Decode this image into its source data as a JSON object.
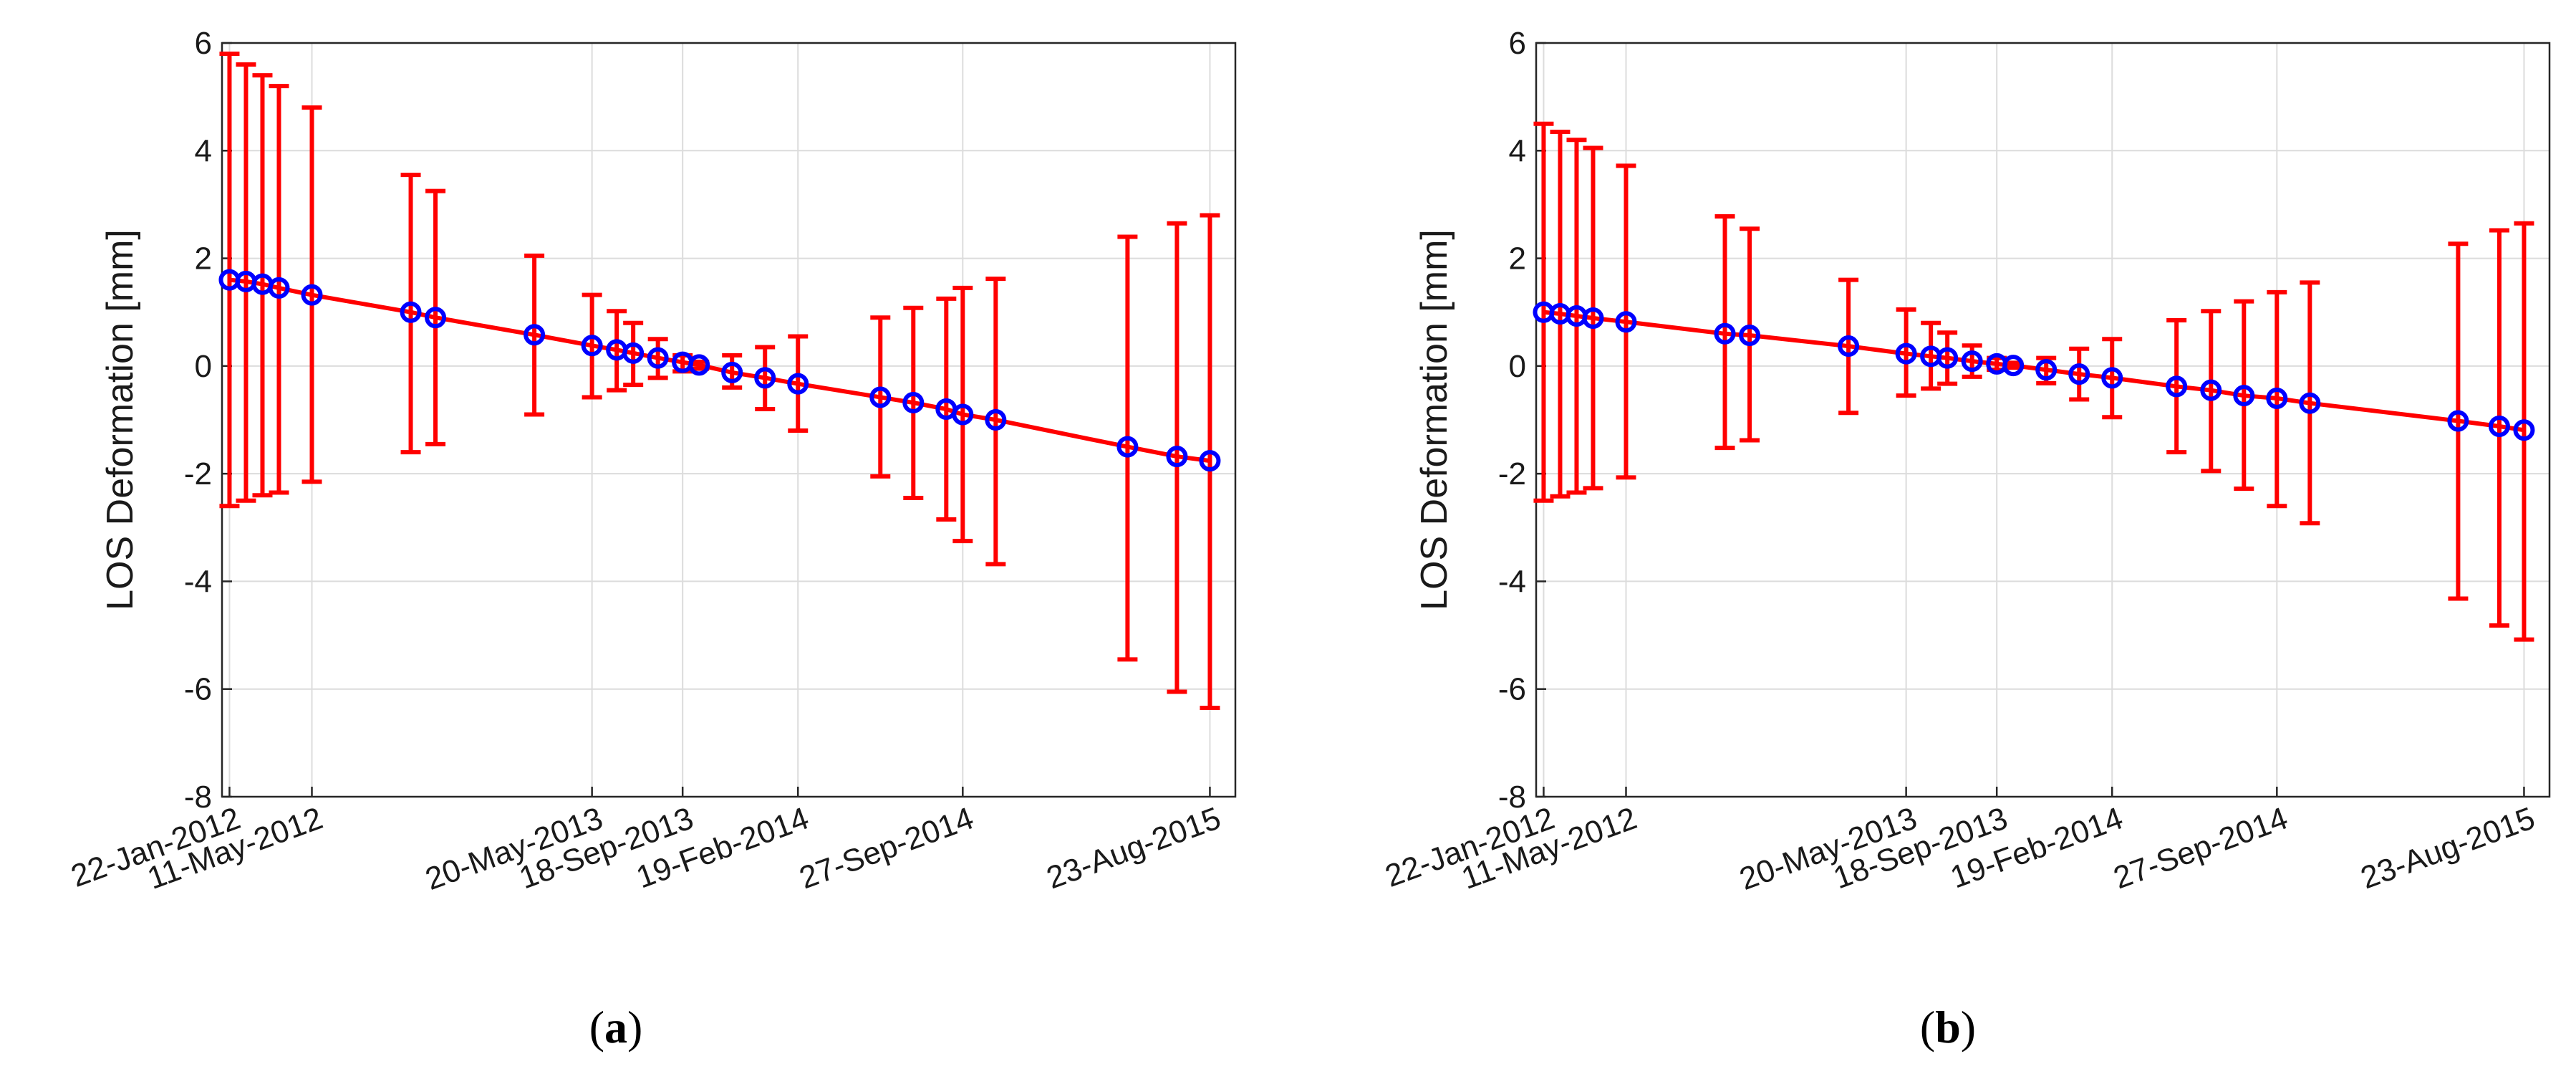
{
  "colors": {
    "line": "#ff0000",
    "marker_edge": "#0000ff",
    "errorbar": "#ff0000",
    "grid": "#dcdcdc",
    "axis": "#262626"
  },
  "chart_data": [
    {
      "type": "errorbar-line",
      "panel_label": "a",
      "ylabel": "LOS Deformation [mm]",
      "xlabel": "",
      "ylim": [
        -8,
        6
      ],
      "yticks": [
        -8,
        -6,
        -4,
        -2,
        0,
        2,
        4,
        6
      ],
      "xlim_days": [
        -10,
        1343
      ],
      "grid": true,
      "xticks": [
        {
          "day": 0,
          "label": "22-Jan-2012"
        },
        {
          "day": 110,
          "label": "11-May-2012"
        },
        {
          "day": 484,
          "label": "20-May-2013"
        },
        {
          "day": 605,
          "label": "18-Sep-2013"
        },
        {
          "day": 759,
          "label": "19-Feb-2014"
        },
        {
          "day": 979,
          "label": "27-Sep-2014"
        },
        {
          "day": 1309,
          "label": "23-Aug-2015"
        }
      ],
      "series": {
        "name": "LOS deformation",
        "points": [
          {
            "day": 0,
            "y": 1.6,
            "upper": 5.8,
            "lower": -2.6
          },
          {
            "day": 22,
            "y": 1.57,
            "upper": 5.6,
            "lower": -2.5
          },
          {
            "day": 44,
            "y": 1.52,
            "upper": 5.4,
            "lower": -2.4
          },
          {
            "day": 66,
            "y": 1.45,
            "upper": 5.2,
            "lower": -2.35
          },
          {
            "day": 110,
            "y": 1.32,
            "upper": 4.8,
            "lower": -2.15
          },
          {
            "day": 242,
            "y": 1.0,
            "upper": 3.55,
            "lower": -1.6
          },
          {
            "day": 275,
            "y": 0.9,
            "upper": 3.25,
            "lower": -1.45
          },
          {
            "day": 407,
            "y": 0.58,
            "upper": 2.05,
            "lower": -0.9
          },
          {
            "day": 484,
            "y": 0.38,
            "upper": 1.32,
            "lower": -0.58
          },
          {
            "day": 517,
            "y": 0.3,
            "upper": 1.02,
            "lower": -0.45
          },
          {
            "day": 539,
            "y": 0.24,
            "upper": 0.8,
            "lower": -0.35
          },
          {
            "day": 572,
            "y": 0.15,
            "upper": 0.5,
            "lower": -0.22
          },
          {
            "day": 605,
            "y": 0.07,
            "upper": 0.2,
            "lower": -0.1
          },
          {
            "day": 627,
            "y": 0.02,
            "upper": 0.08,
            "lower": -0.05
          },
          {
            "day": 671,
            "y": -0.12,
            "upper": 0.2,
            "lower": -0.4
          },
          {
            "day": 715,
            "y": -0.22,
            "upper": 0.35,
            "lower": -0.8
          },
          {
            "day": 759,
            "y": -0.33,
            "upper": 0.55,
            "lower": -1.2
          },
          {
            "day": 869,
            "y": -0.58,
            "upper": 0.9,
            "lower": -2.05
          },
          {
            "day": 913,
            "y": -0.68,
            "upper": 1.08,
            "lower": -2.45
          },
          {
            "day": 957,
            "y": -0.8,
            "upper": 1.25,
            "lower": -2.85
          },
          {
            "day": 979,
            "y": -0.9,
            "upper": 1.45,
            "lower": -3.25
          },
          {
            "day": 1023,
            "y": -1.0,
            "upper": 1.62,
            "lower": -3.68
          },
          {
            "day": 1199,
            "y": -1.5,
            "upper": 2.4,
            "lower": -5.45
          },
          {
            "day": 1265,
            "y": -1.68,
            "upper": 2.65,
            "lower": -6.05
          },
          {
            "day": 1309,
            "y": -1.76,
            "upper": 2.8,
            "lower": -6.35
          }
        ]
      }
    },
    {
      "type": "errorbar-line",
      "panel_label": "b",
      "ylabel": "LOS Deformation [mm]",
      "xlabel": "",
      "ylim": [
        -8,
        6
      ],
      "yticks": [
        -8,
        -6,
        -4,
        -2,
        0,
        2,
        4,
        6
      ],
      "xlim_days": [
        -10,
        1343
      ],
      "grid": true,
      "xticks": [
        {
          "day": 0,
          "label": "22-Jan-2012"
        },
        {
          "day": 110,
          "label": "11-May-2012"
        },
        {
          "day": 484,
          "label": "20-May-2013"
        },
        {
          "day": 605,
          "label": "18-Sep-2013"
        },
        {
          "day": 759,
          "label": "19-Feb-2014"
        },
        {
          "day": 979,
          "label": "27-Sep-2014"
        },
        {
          "day": 1309,
          "label": "23-Aug-2015"
        }
      ],
      "series": {
        "name": "LOS deformation",
        "points": [
          {
            "day": 0,
            "y": 1.0,
            "upper": 4.5,
            "lower": -2.5
          },
          {
            "day": 22,
            "y": 0.97,
            "upper": 4.35,
            "lower": -2.42
          },
          {
            "day": 44,
            "y": 0.93,
            "upper": 4.2,
            "lower": -2.35
          },
          {
            "day": 66,
            "y": 0.89,
            "upper": 4.05,
            "lower": -2.27
          },
          {
            "day": 110,
            "y": 0.82,
            "upper": 3.72,
            "lower": -2.07
          },
          {
            "day": 242,
            "y": 0.6,
            "upper": 2.78,
            "lower": -1.52
          },
          {
            "day": 275,
            "y": 0.57,
            "upper": 2.55,
            "lower": -1.38
          },
          {
            "day": 407,
            "y": 0.37,
            "upper": 1.6,
            "lower": -0.87
          },
          {
            "day": 484,
            "y": 0.23,
            "upper": 1.05,
            "lower": -0.55
          },
          {
            "day": 517,
            "y": 0.18,
            "upper": 0.8,
            "lower": -0.42
          },
          {
            "day": 539,
            "y": 0.15,
            "upper": 0.62,
            "lower": -0.33
          },
          {
            "day": 572,
            "y": 0.09,
            "upper": 0.38,
            "lower": -0.2
          },
          {
            "day": 605,
            "y": 0.04,
            "upper": 0.15,
            "lower": -0.07
          },
          {
            "day": 627,
            "y": 0.01,
            "upper": 0.06,
            "lower": -0.03
          },
          {
            "day": 671,
            "y": -0.07,
            "upper": 0.15,
            "lower": -0.32
          },
          {
            "day": 715,
            "y": -0.15,
            "upper": 0.32,
            "lower": -0.62
          },
          {
            "day": 759,
            "y": -0.22,
            "upper": 0.5,
            "lower": -0.95
          },
          {
            "day": 845,
            "y": -0.38,
            "upper": 0.85,
            "lower": -1.6
          },
          {
            "day": 891,
            "y": -0.45,
            "upper": 1.02,
            "lower": -1.95
          },
          {
            "day": 935,
            "y": -0.55,
            "upper": 1.2,
            "lower": -2.28
          },
          {
            "day": 979,
            "y": -0.6,
            "upper": 1.37,
            "lower": -2.6
          },
          {
            "day": 1023,
            "y": -0.69,
            "upper": 1.55,
            "lower": -2.92
          },
          {
            "day": 1221,
            "y": -1.02,
            "upper": 2.27,
            "lower": -4.32
          },
          {
            "day": 1276,
            "y": -1.12,
            "upper": 2.52,
            "lower": -4.82
          },
          {
            "day": 1309,
            "y": -1.19,
            "upper": 2.65,
            "lower": -5.08
          }
        ]
      }
    }
  ]
}
